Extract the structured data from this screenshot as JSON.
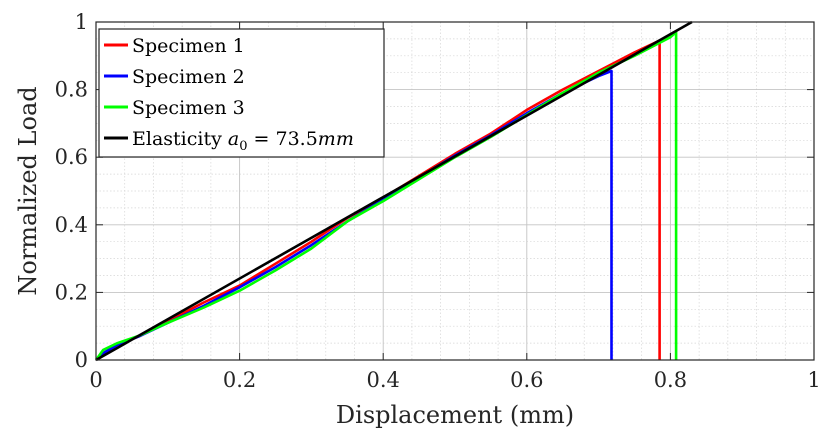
{
  "chart_data": {
    "type": "line",
    "title": "",
    "xlabel": "Displacement (mm)",
    "ylabel": "Normalized Load",
    "xlim": [
      0,
      1
    ],
    "ylim": [
      0,
      1
    ],
    "xticks": [
      "0",
      "0.2",
      "0.4",
      "0.6",
      "0.8",
      "1"
    ],
    "yticks": [
      "0",
      "0.2",
      "0.4",
      "0.6",
      "0.8",
      "1"
    ],
    "grid": "on (major and minor)",
    "legend_position": "top-left",
    "series": [
      {
        "name": "Specimen 1",
        "color": "#ff0000",
        "x": [
          0.0,
          0.01,
          0.03,
          0.06,
          0.1,
          0.15,
          0.2,
          0.25,
          0.3,
          0.35,
          0.4,
          0.45,
          0.5,
          0.55,
          0.6,
          0.65,
          0.7,
          0.75,
          0.785,
          0.785
        ],
        "y": [
          0.0,
          0.02,
          0.045,
          0.07,
          0.115,
          0.17,
          0.22,
          0.285,
          0.35,
          0.42,
          0.48,
          0.545,
          0.61,
          0.67,
          0.74,
          0.8,
          0.855,
          0.91,
          0.945,
          0.0
        ]
      },
      {
        "name": "Specimen 2",
        "color": "#0000ff",
        "x": [
          0.0,
          0.01,
          0.03,
          0.06,
          0.1,
          0.15,
          0.2,
          0.25,
          0.3,
          0.35,
          0.4,
          0.45,
          0.5,
          0.55,
          0.6,
          0.65,
          0.7,
          0.718,
          0.718
        ],
        "y": [
          0.0,
          0.02,
          0.045,
          0.07,
          0.11,
          0.16,
          0.215,
          0.275,
          0.34,
          0.41,
          0.475,
          0.54,
          0.605,
          0.665,
          0.73,
          0.79,
          0.84,
          0.855,
          0.0
        ]
      },
      {
        "name": "Specimen 3",
        "color": "#00ff00",
        "x": [
          0.0,
          0.01,
          0.03,
          0.06,
          0.1,
          0.15,
          0.2,
          0.25,
          0.3,
          0.35,
          0.4,
          0.45,
          0.5,
          0.55,
          0.6,
          0.65,
          0.7,
          0.75,
          0.8,
          0.808,
          0.808
        ],
        "y": [
          0.0,
          0.03,
          0.05,
          0.072,
          0.11,
          0.155,
          0.205,
          0.265,
          0.33,
          0.41,
          0.47,
          0.535,
          0.6,
          0.66,
          0.725,
          0.79,
          0.85,
          0.9,
          0.955,
          0.97,
          0.0
        ]
      },
      {
        "name": "Elasticity a0 = 73.5mm",
        "legend_label": {
          "prefix": "Elasticity ",
          "symbol": "a",
          "subscript": "0",
          "equals": " = ",
          "value": "73.5",
          "unit": "mm"
        },
        "color": "#000000",
        "x": [
          0.0,
          0.83
        ],
        "y": [
          0.0,
          1.0
        ]
      }
    ]
  }
}
